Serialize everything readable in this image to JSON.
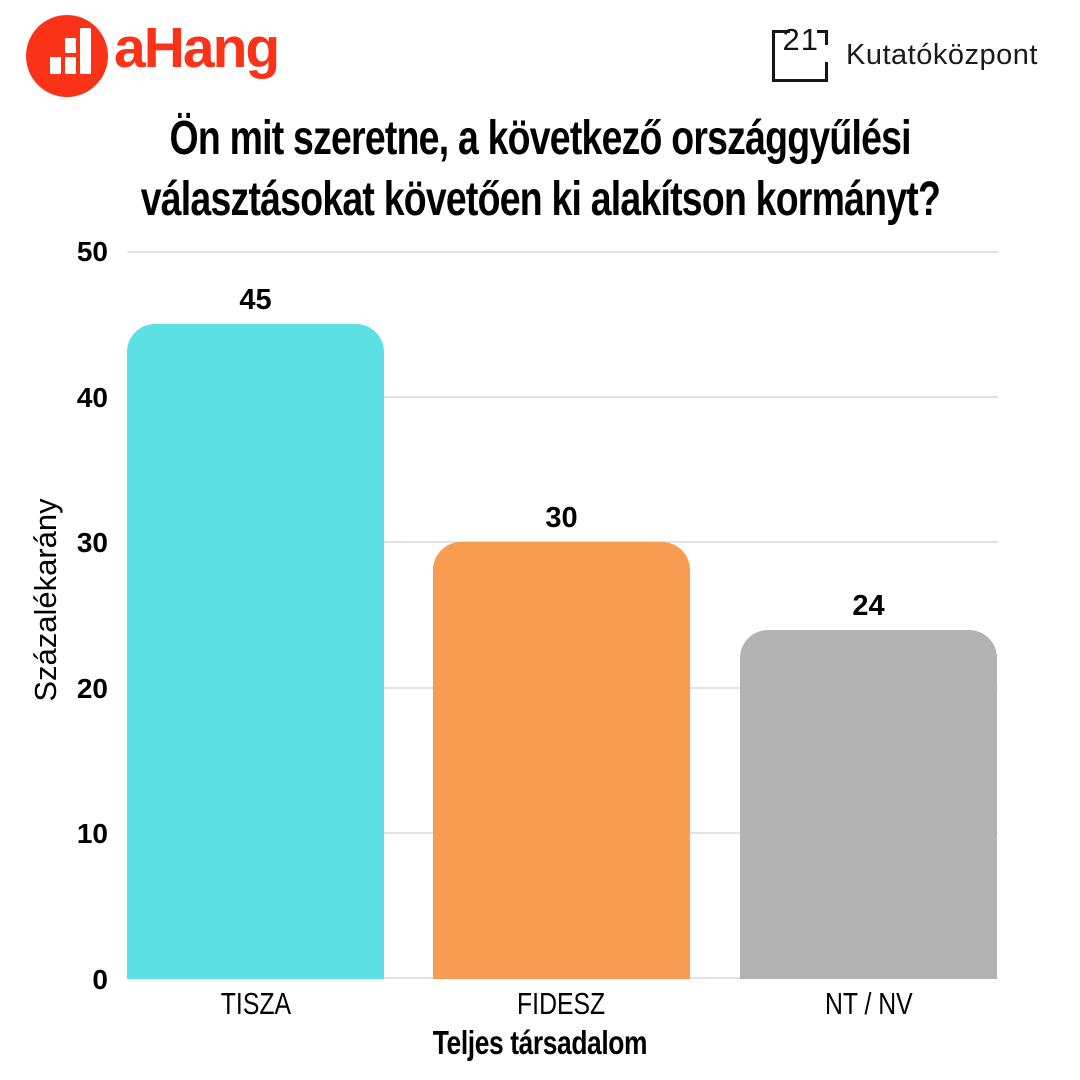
{
  "header": {
    "ahang": {
      "wordmark": "aHang"
    },
    "kutatokozpont": {
      "number": "21",
      "name": "Kutatóközpont"
    }
  },
  "title": {
    "line1": "Ön mit szeretne, a következő országgyűlési",
    "line2": "választásokat követően ki alakítson kormányt?"
  },
  "chart_data": {
    "type": "bar",
    "title": "Ön mit szeretne, a következő országgyűlési választásokat követően ki alakítson kormányt?",
    "categories": [
      "TISZA",
      "FIDESZ",
      "NT / NV"
    ],
    "values": [
      45,
      30,
      24
    ],
    "bar_colors": [
      "#5CE0E4",
      "#F89C51",
      "#B3B3B3"
    ],
    "xlabel": "Teljes társadalom",
    "ylabel": "Százalékarány",
    "ylim": [
      0,
      50
    ],
    "yticks": [
      0,
      10,
      20,
      30,
      40,
      50
    ],
    "grid": true,
    "legend_position": "none"
  },
  "colors": {
    "brand_red": "#FA3217",
    "gridline": "#E3E3E3",
    "logo_black": "#151515",
    "text": "#000000"
  }
}
